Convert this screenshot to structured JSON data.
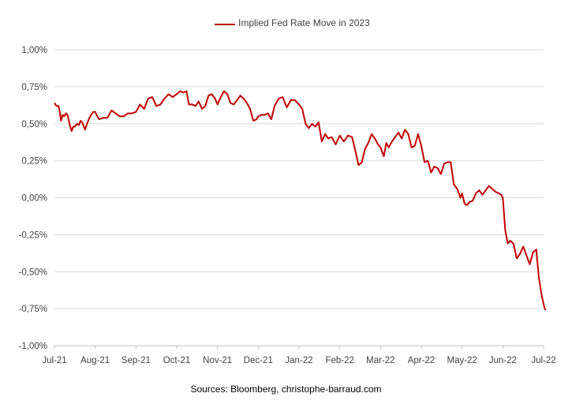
{
  "chart_data": {
    "type": "line",
    "title": "",
    "xlabel": "",
    "ylabel": "",
    "ylim": [
      -1.0,
      1.0
    ],
    "y_ticks": [
      "1,00%",
      "0,75%",
      "0,50%",
      "0,25%",
      "0,00%",
      "-0,25%",
      "-0,50%",
      "-0,75%",
      "-1,00%"
    ],
    "y_tick_values": [
      1.0,
      0.75,
      0.5,
      0.25,
      0.0,
      -0.25,
      -0.5,
      -0.75,
      -1.0
    ],
    "x_ticks": [
      "Jul-21",
      "Aug-21",
      "Sep-21",
      "Oct-21",
      "Nov-21",
      "Dec-21",
      "Jan-22",
      "Feb-22",
      "Mar-22",
      "Apr-22",
      "May-22",
      "Jun-22",
      "Jul-22"
    ],
    "grid": "horizontal",
    "legend_position": "top-center",
    "series": [
      {
        "name": "Implied Fed Rate Move in 2023",
        "color": "#c00000",
        "x": [
          0,
          0.05,
          0.1,
          0.13,
          0.16,
          0.2,
          0.24,
          0.28,
          0.32,
          0.37,
          0.42,
          0.46,
          0.5,
          0.55,
          0.6,
          0.64,
          0.68,
          0.75,
          0.8,
          0.86,
          0.9,
          0.95,
          1,
          1.05,
          1.1,
          1.2,
          1.3,
          1.4,
          1.5,
          1.6,
          1.7,
          1.8,
          1.9,
          2,
          2.1,
          2.2,
          2.3,
          2.4,
          2.5,
          2.6,
          2.7,
          2.8,
          2.9,
          3,
          3.08,
          3.16,
          3.24,
          3.3,
          3.38,
          3.46,
          3.54,
          3.62,
          3.7,
          3.78,
          3.86,
          3.94,
          4,
          4.08,
          4.16,
          4.24,
          4.32,
          4.4,
          4.48,
          4.56,
          4.64,
          4.72,
          4.8,
          4.88,
          4.96,
          5,
          5.08,
          5.16,
          5.24,
          5.32,
          5.4,
          5.5,
          5.6,
          5.7,
          5.8,
          5.9,
          6,
          6.08,
          6.16,
          6.24,
          6.32,
          6.4,
          6.48,
          6.56,
          6.64,
          6.72,
          6.8,
          6.9,
          7,
          7.1,
          7.2,
          7.3,
          7.38,
          7.46,
          7.54,
          7.62,
          7.7,
          7.78,
          7.86,
          7.94,
          8,
          8.08,
          8.14,
          8.2,
          8.28,
          8.36,
          8.44,
          8.52,
          8.6,
          8.68,
          8.76,
          8.84,
          8.92,
          9,
          9.08,
          9.16,
          9.24,
          9.32,
          9.4,
          9.48,
          9.56,
          9.64,
          9.72,
          9.8,
          9.88,
          9.96,
          10,
          10.06,
          10.12,
          10.18,
          10.26,
          10.34,
          10.42,
          10.5,
          10.58,
          10.66,
          10.74,
          10.82,
          10.9,
          10.96,
          11,
          11.06,
          11.12,
          11.18,
          11.26,
          11.34,
          11.42,
          11.5,
          11.58,
          11.66,
          11.74,
          11.82,
          11.88,
          11.94,
          12,
          12.04
        ],
        "values": [
          0.64,
          0.62,
          0.62,
          0.58,
          0.52,
          0.56,
          0.55,
          0.57,
          0.56,
          0.5,
          0.45,
          0.48,
          0.48,
          0.5,
          0.49,
          0.52,
          0.51,
          0.46,
          0.5,
          0.54,
          0.56,
          0.58,
          0.58,
          0.55,
          0.53,
          0.54,
          0.54,
          0.59,
          0.57,
          0.55,
          0.55,
          0.57,
          0.57,
          0.58,
          0.63,
          0.6,
          0.67,
          0.68,
          0.62,
          0.63,
          0.67,
          0.7,
          0.68,
          0.7,
          0.72,
          0.71,
          0.72,
          0.63,
          0.63,
          0.62,
          0.65,
          0.6,
          0.62,
          0.69,
          0.7,
          0.67,
          0.63,
          0.68,
          0.72,
          0.7,
          0.64,
          0.63,
          0.66,
          0.69,
          0.67,
          0.64,
          0.6,
          0.52,
          0.53,
          0.55,
          0.56,
          0.56,
          0.57,
          0.53,
          0.62,
          0.67,
          0.68,
          0.61,
          0.66,
          0.66,
          0.63,
          0.6,
          0.5,
          0.47,
          0.5,
          0.48,
          0.51,
          0.38,
          0.43,
          0.4,
          0.41,
          0.36,
          0.42,
          0.38,
          0.42,
          0.41,
          0.32,
          0.22,
          0.24,
          0.33,
          0.37,
          0.43,
          0.4,
          0.36,
          0.34,
          0.28,
          0.37,
          0.34,
          0.38,
          0.41,
          0.44,
          0.4,
          0.46,
          0.43,
          0.34,
          0.35,
          0.43,
          0.35,
          0.24,
          0.25,
          0.17,
          0.21,
          0.2,
          0.16,
          0.23,
          0.24,
          0.24,
          0.09,
          0.06,
          0.0,
          0.03,
          -0.04,
          -0.05,
          -0.03,
          -0.02,
          0.03,
          0.05,
          0.02,
          0.05,
          0.08,
          0.06,
          0.04,
          0.03,
          0.02,
          0.0,
          -0.22,
          -0.31,
          -0.29,
          -0.31,
          -0.41,
          -0.38,
          -0.33,
          -0.39,
          -0.45,
          -0.37,
          -0.35,
          -0.53,
          -0.64,
          -0.72,
          -0.76
        ]
      }
    ]
  },
  "source_text": "Sources: Bloomberg, christophe-barraud.com"
}
